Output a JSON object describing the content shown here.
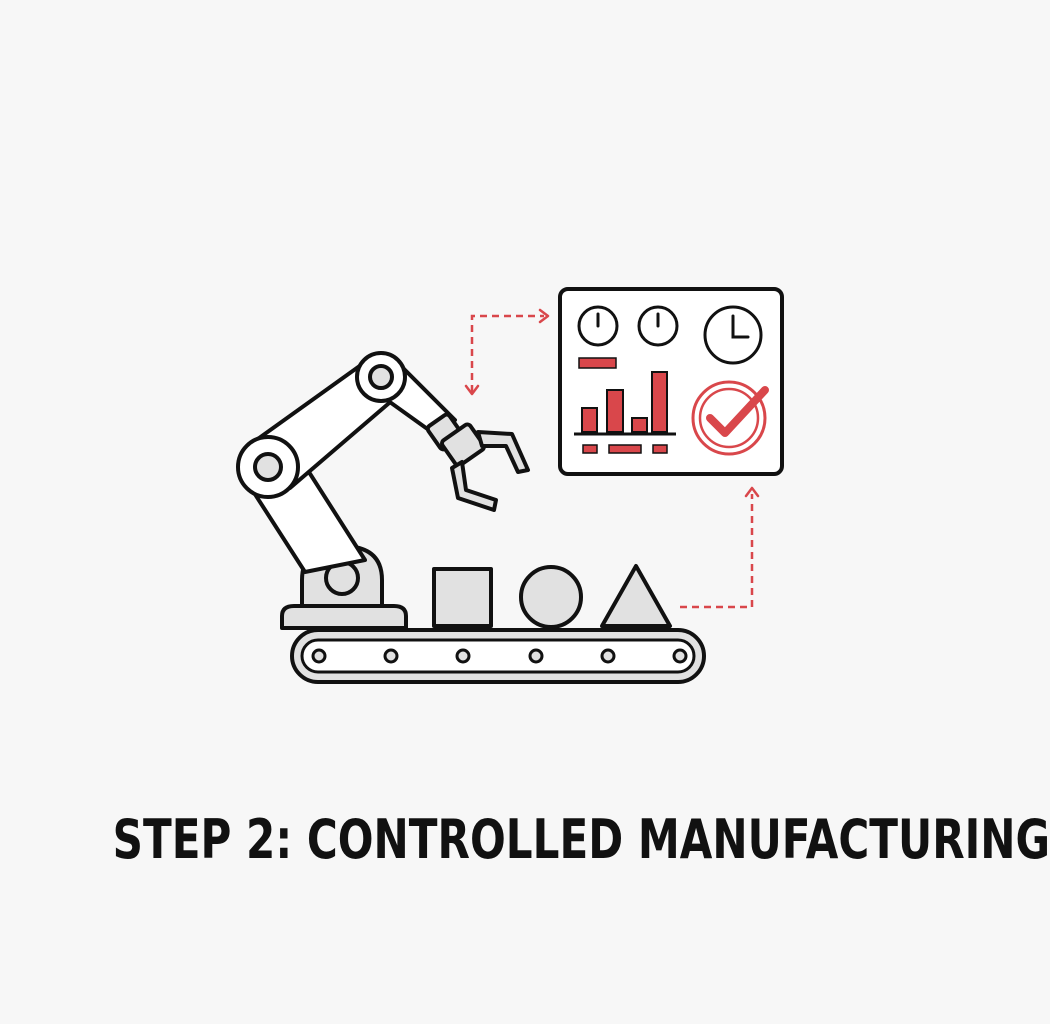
{
  "caption": {
    "title": "STEP 2: CONTROLLED MANUFACTURING"
  },
  "colors": {
    "background": "#f7f7f7",
    "outline": "#111111",
    "fill_light": "#e1e1e1",
    "accent_red": "#d9474b"
  },
  "icons": {
    "robot": "robotic-arm-icon",
    "conveyor": "conveyor-belt-icon",
    "dashboard": "monitoring-dashboard-icon",
    "check": "checkmark-icon",
    "clock": "clock-icon",
    "gauge": "gauge-icon"
  }
}
